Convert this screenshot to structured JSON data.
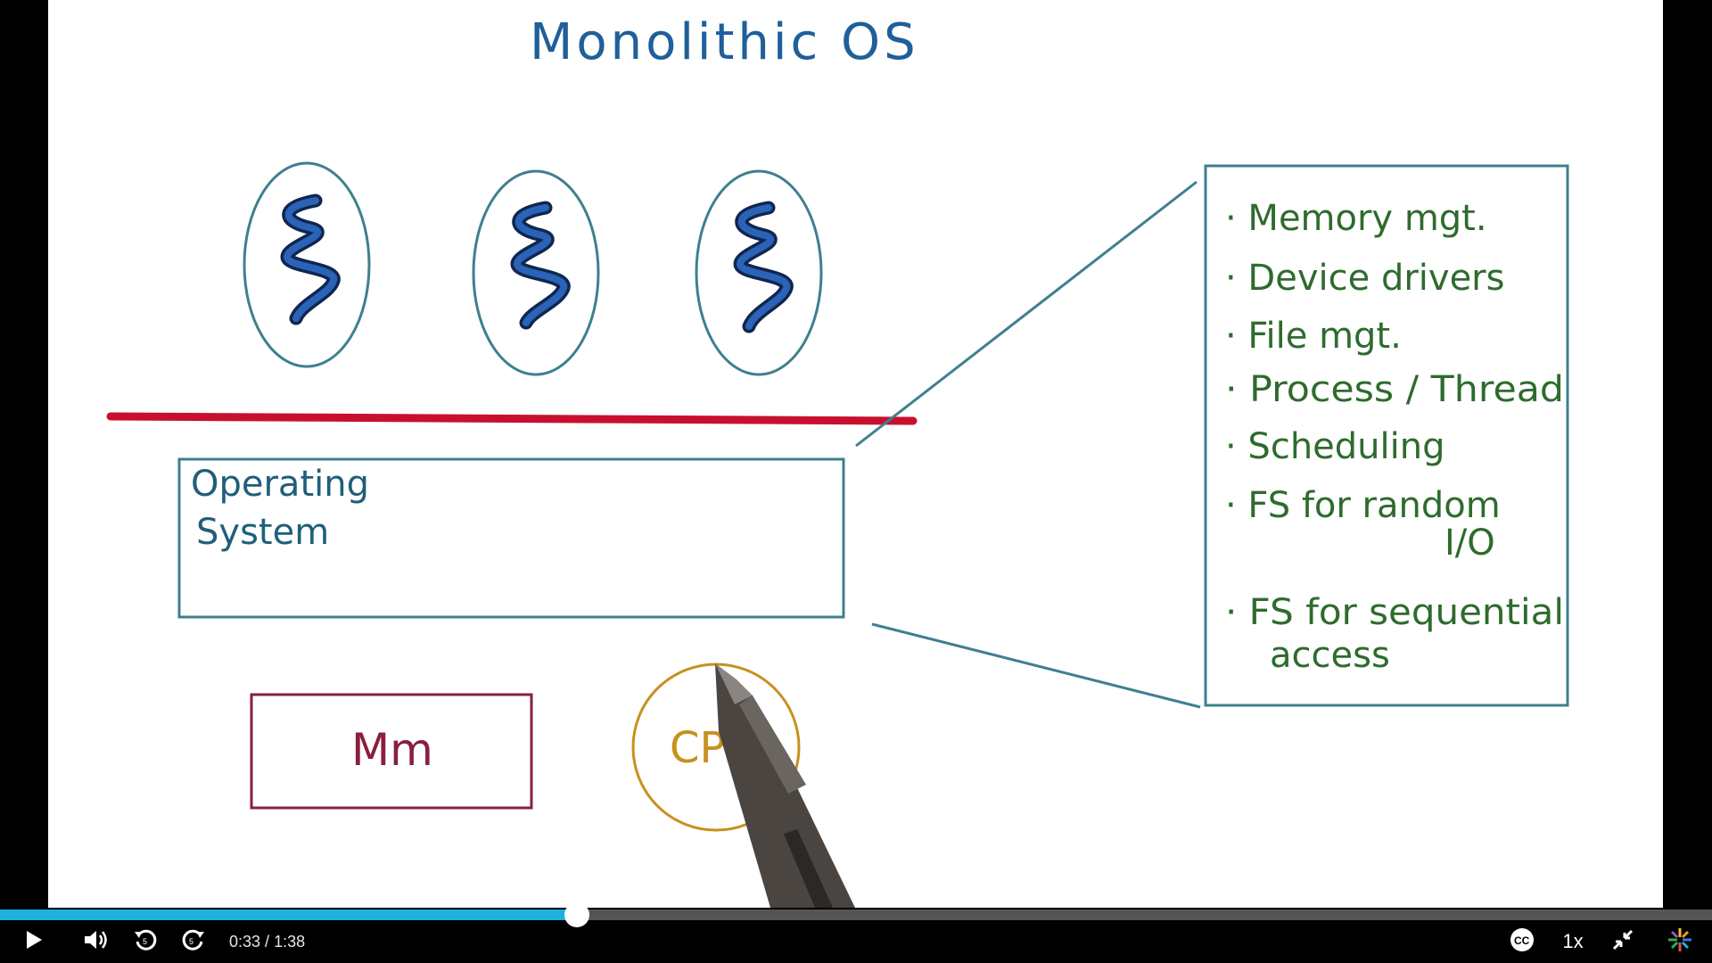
{
  "board": {
    "title": "Monolithic OS",
    "os_box_line1": "Operating",
    "os_box_line2": "System",
    "memory_label": "Mm",
    "cpu_label": "CPU",
    "services": [
      "· Memory mgt.",
      "· Device drivers",
      "· File mgt.",
      "· Process / Thread",
      "· Scheduling",
      "· FS for random",
      "I/O",
      "· FS for sequential",
      "access"
    ],
    "colors": {
      "title": "#1f5f9a",
      "ellipse": "#3f7f8f",
      "thread": "#1b4fa0",
      "divider": "#c8102e",
      "os_box": "#3f7f8f",
      "memory": "#8a1f3d",
      "cpu": "#c8901f",
      "services": "#2e6b2e"
    }
  },
  "player": {
    "progress": 0.337,
    "current_time": "0:33",
    "separator": " / ",
    "duration": "1:38",
    "speed": "1x",
    "colors": {
      "played": "#1fb0e0",
      "track": "#555555"
    },
    "icons": [
      "play-icon",
      "volume-icon",
      "rewind-icon",
      "forward-icon",
      "captions-icon",
      "exit-fullscreen-icon",
      "logo-icon"
    ]
  }
}
